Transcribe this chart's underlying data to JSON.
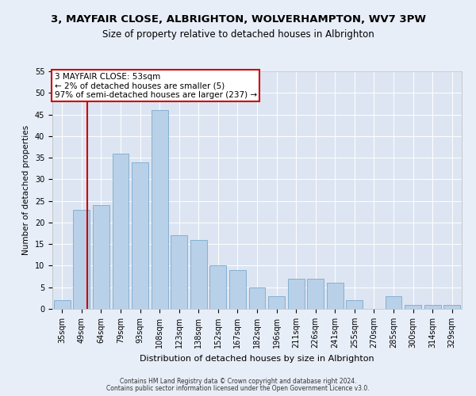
{
  "title1": "3, MAYFAIR CLOSE, ALBRIGHTON, WOLVERHAMPTON, WV7 3PW",
  "title2": "Size of property relative to detached houses in Albrighton",
  "xlabel": "Distribution of detached houses by size in Albrighton",
  "ylabel": "Number of detached properties",
  "categories": [
    "35sqm",
    "49sqm",
    "64sqm",
    "79sqm",
    "93sqm",
    "108sqm",
    "123sqm",
    "138sqm",
    "152sqm",
    "167sqm",
    "182sqm",
    "196sqm",
    "211sqm",
    "226sqm",
    "241sqm",
    "255sqm",
    "270sqm",
    "285sqm",
    "300sqm",
    "314sqm",
    "329sqm"
  ],
  "values": [
    2,
    23,
    24,
    36,
    34,
    46,
    17,
    16,
    10,
    9,
    5,
    3,
    7,
    7,
    6,
    2,
    0,
    3,
    1,
    1,
    1
  ],
  "bar_color": "#b8d0e8",
  "bar_edge_color": "#7aaace",
  "vline_color": "#cc0000",
  "vline_x": 1.3,
  "annotation_text": "3 MAYFAIR CLOSE: 53sqm\n← 2% of detached houses are smaller (5)\n97% of semi-detached houses are larger (237) →",
  "annotation_box_facecolor": "#ffffff",
  "annotation_box_edgecolor": "#cc0000",
  "ylim": [
    0,
    55
  ],
  "yticks": [
    0,
    5,
    10,
    15,
    20,
    25,
    30,
    35,
    40,
    45,
    50,
    55
  ],
  "footer1": "Contains HM Land Registry data © Crown copyright and database right 2024.",
  "footer2": "Contains public sector information licensed under the Open Government Licence v3.0.",
  "bg_color": "#e8eef8",
  "plot_bg_color": "#dde5f2",
  "title1_fontsize": 9.5,
  "title2_fontsize": 8.5,
  "tick_fontsize": 7,
  "ylabel_fontsize": 7.5,
  "xlabel_fontsize": 8,
  "annotation_fontsize": 7.5,
  "footer_fontsize": 5.5
}
